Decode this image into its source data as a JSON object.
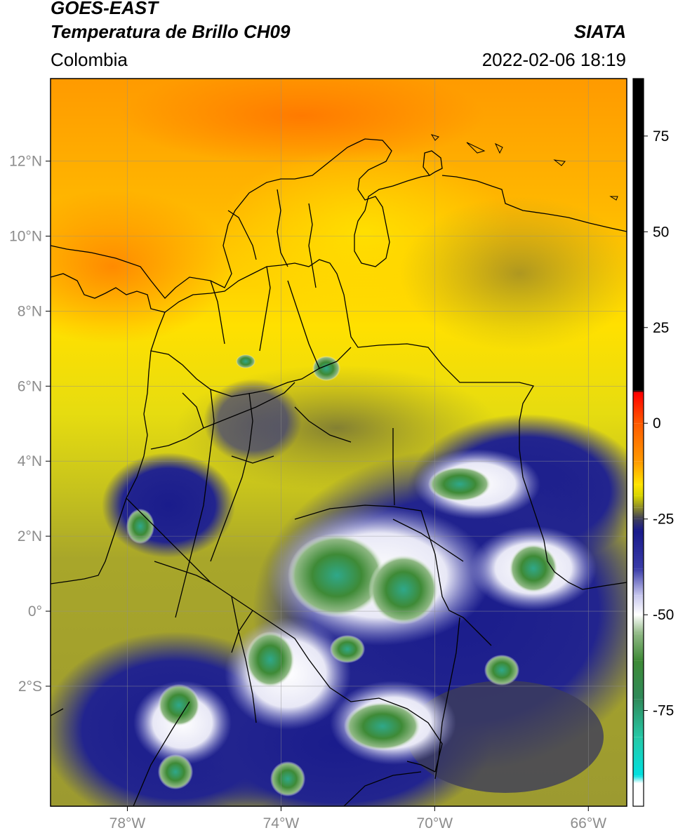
{
  "header": {
    "satellite": "GOES-EAST",
    "product": "Temperatura de Brillo CH09",
    "region": "Colombia",
    "brand": "SIATA",
    "timestamp": "2022-02-06 18:19"
  },
  "map": {
    "lon_range": [
      -80,
      -65
    ],
    "lat_range": [
      -5.2,
      14.2
    ],
    "lon_ticks": [
      {
        "value": -78,
        "label": "78°W"
      },
      {
        "value": -74,
        "label": "74°W"
      },
      {
        "value": -70,
        "label": "70°W"
      },
      {
        "value": -66,
        "label": "66°W"
      }
    ],
    "lat_ticks": [
      {
        "value": 12,
        "label": "12°N"
      },
      {
        "value": 10,
        "label": "10°N"
      },
      {
        "value": 8,
        "label": "8°N"
      },
      {
        "value": 6,
        "label": "6°N"
      },
      {
        "value": 4,
        "label": "4°N"
      },
      {
        "value": 2,
        "label": "2°N"
      },
      {
        "value": 0,
        "label": "0°"
      },
      {
        "value": -2,
        "label": "2°S"
      }
    ],
    "grid": true
  },
  "colorbar": {
    "range": [
      -100,
      90
    ],
    "ticks": [
      {
        "value": 75,
        "label": "75"
      },
      {
        "value": 50,
        "label": "50"
      },
      {
        "value": 25,
        "label": "25"
      },
      {
        "value": 0,
        "label": "0"
      },
      {
        "value": -25,
        "label": "-25"
      },
      {
        "value": -50,
        "label": "-50"
      },
      {
        "value": -75,
        "label": "-75"
      }
    ],
    "stops": [
      {
        "value": 90,
        "color": "#000000"
      },
      {
        "value": 8.5,
        "color": "#000000"
      },
      {
        "value": 8,
        "color": "#ff0000"
      },
      {
        "value": 0,
        "color": "#ff5a00"
      },
      {
        "value": -10,
        "color": "#ff9a00"
      },
      {
        "value": -16,
        "color": "#ffe400"
      },
      {
        "value": -19,
        "color": "#d7d400"
      },
      {
        "value": -22,
        "color": "#8d8c2a"
      },
      {
        "value": -25,
        "color": "#3d3d5a"
      },
      {
        "value": -28,
        "color": "#181a8a"
      },
      {
        "value": -38,
        "color": "#3a3ca8"
      },
      {
        "value": -45,
        "color": "#c8c8ee"
      },
      {
        "value": -50,
        "color": "#ffffff"
      },
      {
        "value": -55,
        "color": "#8fb884"
      },
      {
        "value": -62,
        "color": "#3e8a36"
      },
      {
        "value": -72,
        "color": "#2f8a5a"
      },
      {
        "value": -82,
        "color": "#26c8a6"
      },
      {
        "value": -92,
        "color": "#00e0e0"
      },
      {
        "value": -94,
        "color": "#ffffff"
      },
      {
        "value": -100,
        "color": "#ffffff"
      }
    ]
  }
}
